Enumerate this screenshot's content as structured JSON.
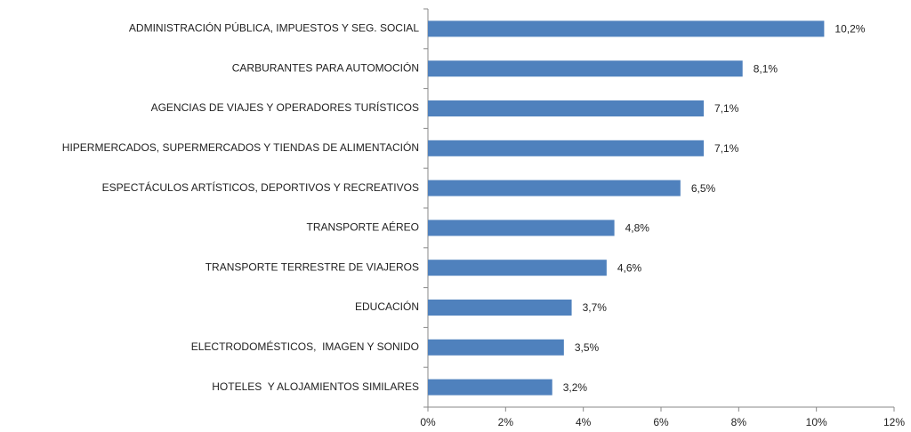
{
  "chart_data": {
    "type": "bar",
    "orientation": "horizontal",
    "categories": [
      "ADMINISTRACIÓN PÚBLICA, IMPUESTOS Y SEG. SOCIAL",
      "CARBURANTES PARA AUTOMOCIÓN",
      "AGENCIAS DE VIAJES Y OPERADORES TURÍSTICOS",
      "HIPERMERCADOS, SUPERMERCADOS Y TIENDAS DE ALIMENTACIÓN",
      "ESPECTÁCULOS ARTÍSTICOS, DEPORTIVOS Y RECREATIVOS",
      "TRANSPORTE AÉREO",
      "TRANSPORTE TERRESTRE DE VIAJEROS",
      "EDUCACIÓN",
      "ELECTRODOMÉSTICOS,  IMAGEN Y SONIDO",
      "HOTELES  Y ALOJAMIENTOS SIMILARES"
    ],
    "values": [
      10.2,
      8.1,
      7.1,
      7.1,
      6.5,
      4.8,
      4.6,
      3.7,
      3.5,
      3.2
    ],
    "value_labels": [
      "10,2%",
      "8,1%",
      "7,1%",
      "7,1%",
      "6,5%",
      "4,8%",
      "4,6%",
      "3,7%",
      "3,5%",
      "3,2%"
    ],
    "color": "#4f81bd",
    "xlim": [
      0,
      12
    ],
    "xticks": [
      {
        "value": 0,
        "label": "0%"
      },
      {
        "value": 2,
        "label": "2%"
      },
      {
        "value": 4,
        "label": "4%"
      },
      {
        "value": 6,
        "label": "6%"
      },
      {
        "value": 8,
        "label": "8%"
      },
      {
        "value": 10,
        "label": "10%"
      },
      {
        "value": 12,
        "label": "12%"
      }
    ],
    "grid": false
  }
}
